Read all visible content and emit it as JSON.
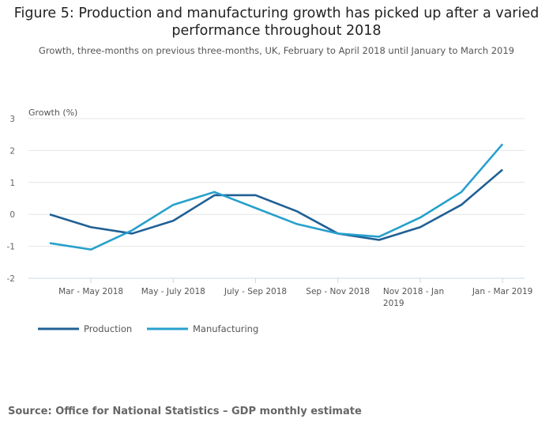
{
  "title": "Figure 5: Production and manufacturing growth has picked up after a varied performance throughout 2018",
  "subtitle": "Growth, three-months on previous three-months, UK, February to April 2018 until January to March 2019",
  "source": "Source: Office for National Statistics – GDP monthly estimate",
  "chart_data": {
    "type": "line",
    "ylabel": "Growth (%)",
    "ylim": [
      -2,
      3
    ],
    "yticks": [
      3,
      2,
      1,
      0,
      -1,
      -2
    ],
    "grid": true,
    "legend_placement": "bottom-left",
    "x_tick_labels": [
      {
        "index": 1,
        "lines": [
          "Mar - May 2018"
        ]
      },
      {
        "index": 3,
        "lines": [
          "May - July 2018"
        ]
      },
      {
        "index": 5,
        "lines": [
          "July - Sep 2018"
        ]
      },
      {
        "index": 7,
        "lines": [
          "Sep - Nov 2018"
        ]
      },
      {
        "index": 9,
        "lines": [
          "Nov 2018 - Jan",
          "2019"
        ]
      },
      {
        "index": 11,
        "lines": [
          "Jan - Mar 2019"
        ]
      }
    ],
    "n_points": 12,
    "series": [
      {
        "name": "Production",
        "color": "#206095",
        "values": [
          0,
          -0.4,
          -0.6,
          -0.2,
          0.6,
          0.6,
          0.1,
          -0.6,
          -0.8,
          -0.4,
          0.3,
          1.4
        ]
      },
      {
        "name": "Manufacturing",
        "color": "#27a0cc",
        "values": [
          -0.9,
          -1.1,
          -0.5,
          0.3,
          0.7,
          0.2,
          -0.3,
          -0.6,
          -0.7,
          -0.1,
          0.7,
          2.2
        ]
      }
    ]
  }
}
